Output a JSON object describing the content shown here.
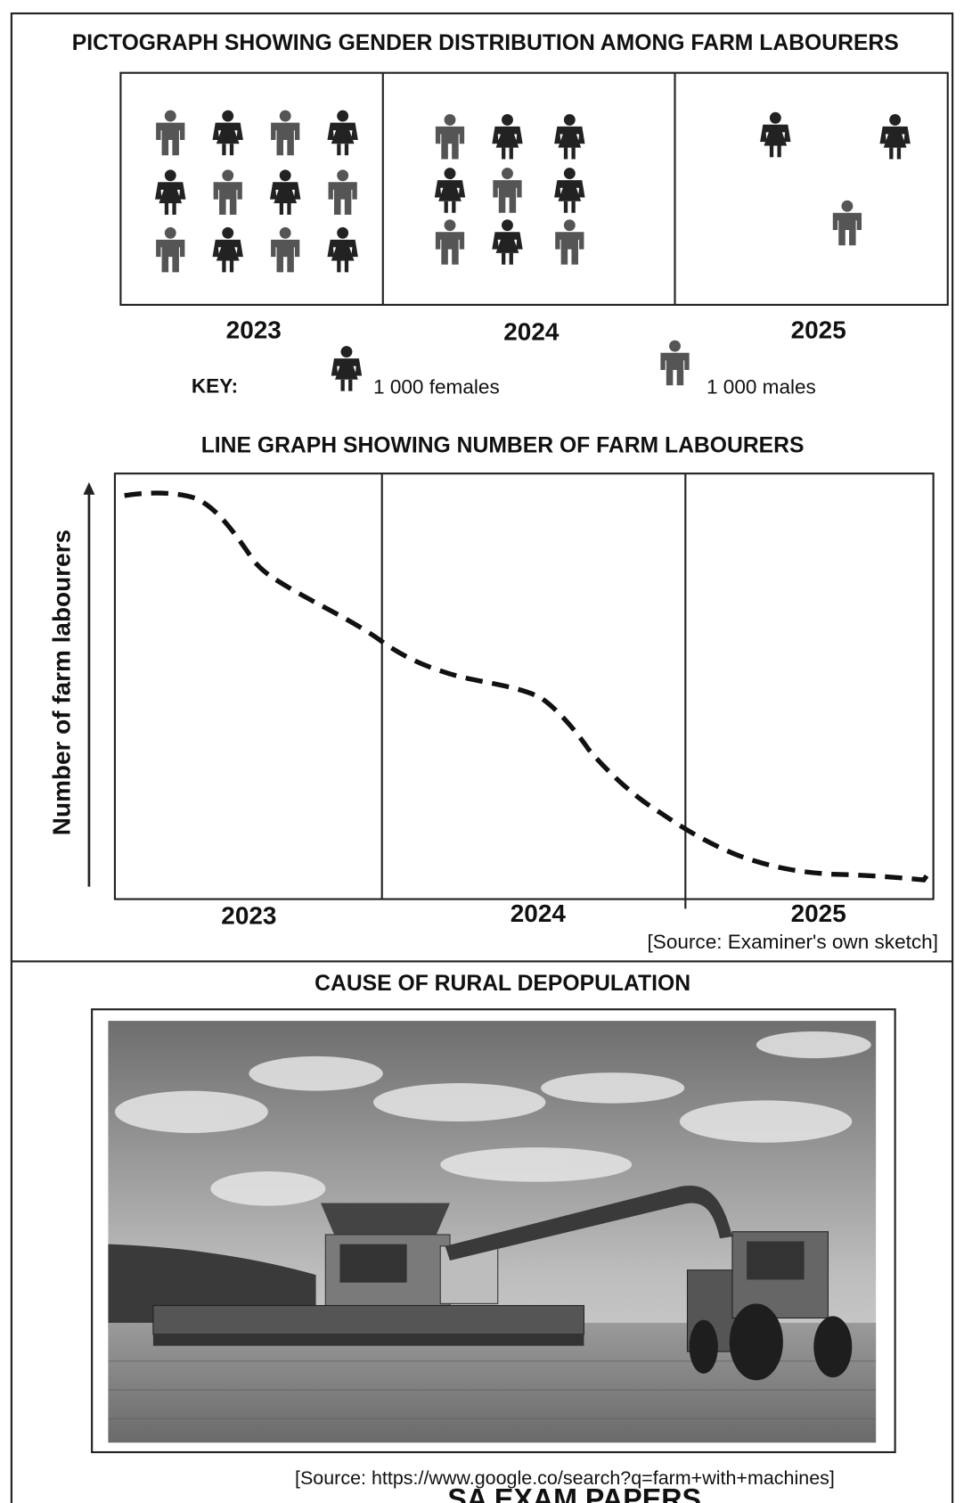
{
  "pictograph": {
    "title": "PICTOGRAPH SHOWING GENDER DISTRIBUTION AMONG FARM LABOURERS",
    "years": [
      {
        "label": "2023",
        "males": 6,
        "females": 6
      },
      {
        "label": "2024",
        "males": 4,
        "females": 5
      },
      {
        "label": "2025",
        "males": 1,
        "females": 2
      }
    ],
    "key": {
      "heading": "KEY:",
      "female": "1 000 females",
      "male": "1 000 males"
    }
  },
  "line_graph": {
    "title": "LINE GRAPH SHOWING NUMBER OF FARM LABOURERS",
    "y_label": "Number of farm labourers",
    "x_labels": [
      "2023",
      "2024",
      "2025"
    ],
    "source": "[Source: Examiner's own sketch]"
  },
  "photo_section": {
    "title": "CAUSE OF RURAL DEPOPULATION",
    "source": "[Source: https://www.google.co/search?q=farm+with+machines]"
  },
  "watermark": "SA EXAM PAPERS"
}
